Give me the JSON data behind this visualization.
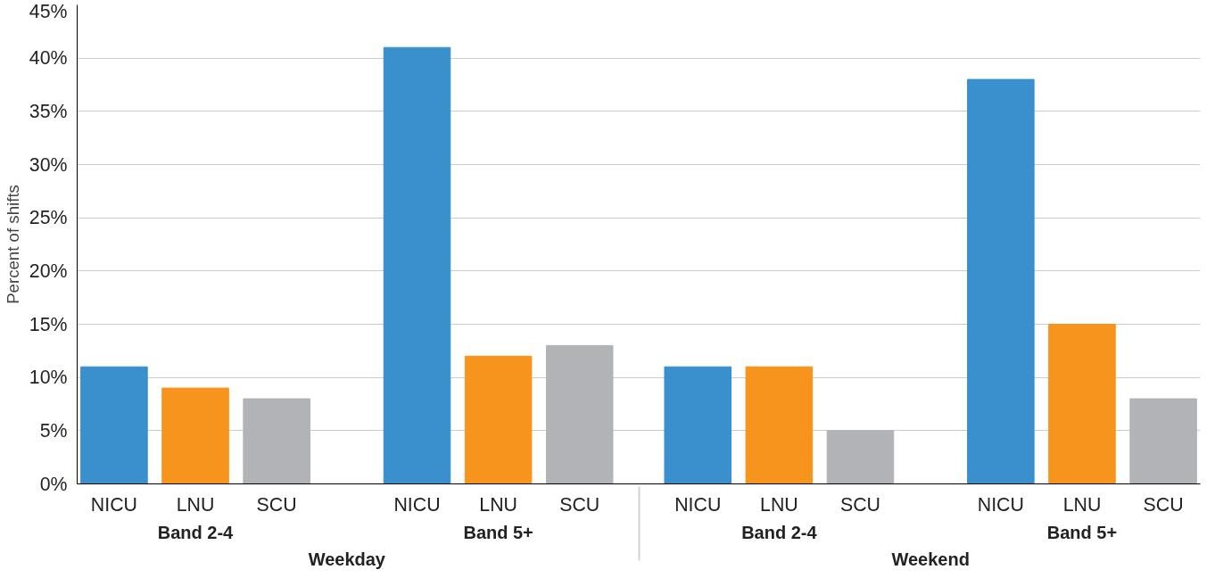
{
  "chart_data": {
    "type": "bar",
    "ylabel": "Percent of shifts",
    "categories": [
      "NICU",
      "LNU",
      "SCU",
      "NICU",
      "LNU",
      "SCU",
      "NICU",
      "LNU",
      "SCU",
      "NICU",
      "LNU",
      "SCU"
    ],
    "values": [
      11,
      9,
      8,
      41,
      12,
      13,
      11,
      11,
      5,
      38,
      15,
      8
    ],
    "colors": [
      "#3a8fcd",
      "#f7941d",
      "#b2b3b6",
      "#3a8fcd",
      "#f7941d",
      "#b2b3b6",
      "#3a8fcd",
      "#f7941d",
      "#b2b3b6",
      "#3a8fcd",
      "#f7941d",
      "#b2b3b6"
    ],
    "annotations": [
      "Band 2-4",
      "Band 5+",
      "Band 2-4",
      "Band 5+",
      "Weekday",
      "Weekend"
    ],
    "ylim": [
      0,
      45
    ],
    "yticks": [
      {
        "value": 0,
        "label": "0%"
      },
      {
        "value": 5,
        "label": "5%"
      },
      {
        "value": 10,
        "label": "10%"
      },
      {
        "value": 15,
        "label": "15%"
      },
      {
        "value": 20,
        "label": "20%"
      },
      {
        "value": 25,
        "label": "25%"
      },
      {
        "value": 30,
        "label": "30%"
      },
      {
        "value": 35,
        "label": "35%"
      },
      {
        "value": 40,
        "label": "40%"
      },
      {
        "value": 45,
        "label": "45%"
      }
    ],
    "grid": "y"
  }
}
